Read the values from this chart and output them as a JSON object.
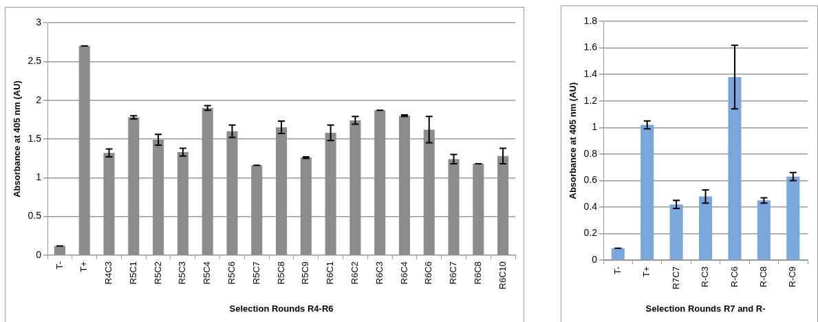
{
  "chart_data": [
    {
      "type": "bar",
      "xlabel": "Selection Rounds R4-R6",
      "ylabel": "Absorbance at 405 nm (AU)",
      "categories": [
        "T-",
        "T+",
        "R4C3",
        "R5C1",
        "R5C2",
        "R5C3",
        "R5C4",
        "R5C6",
        "R5C7",
        "R5C8",
        "R5C9",
        "R6C1",
        "R6C2",
        "R6C3",
        "R6C4",
        "R6C6",
        "R6C7",
        "R6C8",
        "R6C10"
      ],
      "values": [
        0.12,
        2.7,
        1.32,
        1.78,
        1.49,
        1.33,
        1.9,
        1.6,
        1.16,
        1.65,
        1.26,
        1.58,
        1.74,
        1.87,
        1.8,
        1.62,
        1.24,
        1.18,
        1.28
      ],
      "errors": [
        0,
        0,
        0.05,
        0.02,
        0.07,
        0.05,
        0.03,
        0.08,
        0,
        0.08,
        0.01,
        0.1,
        0.05,
        0,
        0.01,
        0.17,
        0.06,
        0,
        0.1
      ],
      "color": "#8c8c8c",
      "ylim": [
        0,
        3
      ],
      "yticks": [
        0,
        0.5,
        1,
        1.5,
        2,
        2.5,
        3
      ],
      "grid": "y",
      "legend": false
    },
    {
      "type": "bar",
      "xlabel": "Selection Rounds R7 and R-",
      "ylabel": "Absorbance at 405 nm (AU)",
      "categories": [
        "T-",
        "T+",
        "R7C7",
        "R-C3",
        "R-C6",
        "R-C8",
        "R-C9"
      ],
      "values": [
        0.09,
        1.02,
        0.42,
        0.48,
        1.38,
        0.45,
        0.63
      ],
      "errors": [
        0,
        0.03,
        0.03,
        0.05,
        0.24,
        0.02,
        0.03
      ],
      "color": "#79a7dc",
      "ylim": [
        0,
        1.8
      ],
      "yticks": [
        0,
        0.2,
        0.4,
        0.6,
        0.8,
        1,
        1.2,
        1.4,
        1.6,
        1.8
      ],
      "grid": "y",
      "legend": false
    }
  ]
}
